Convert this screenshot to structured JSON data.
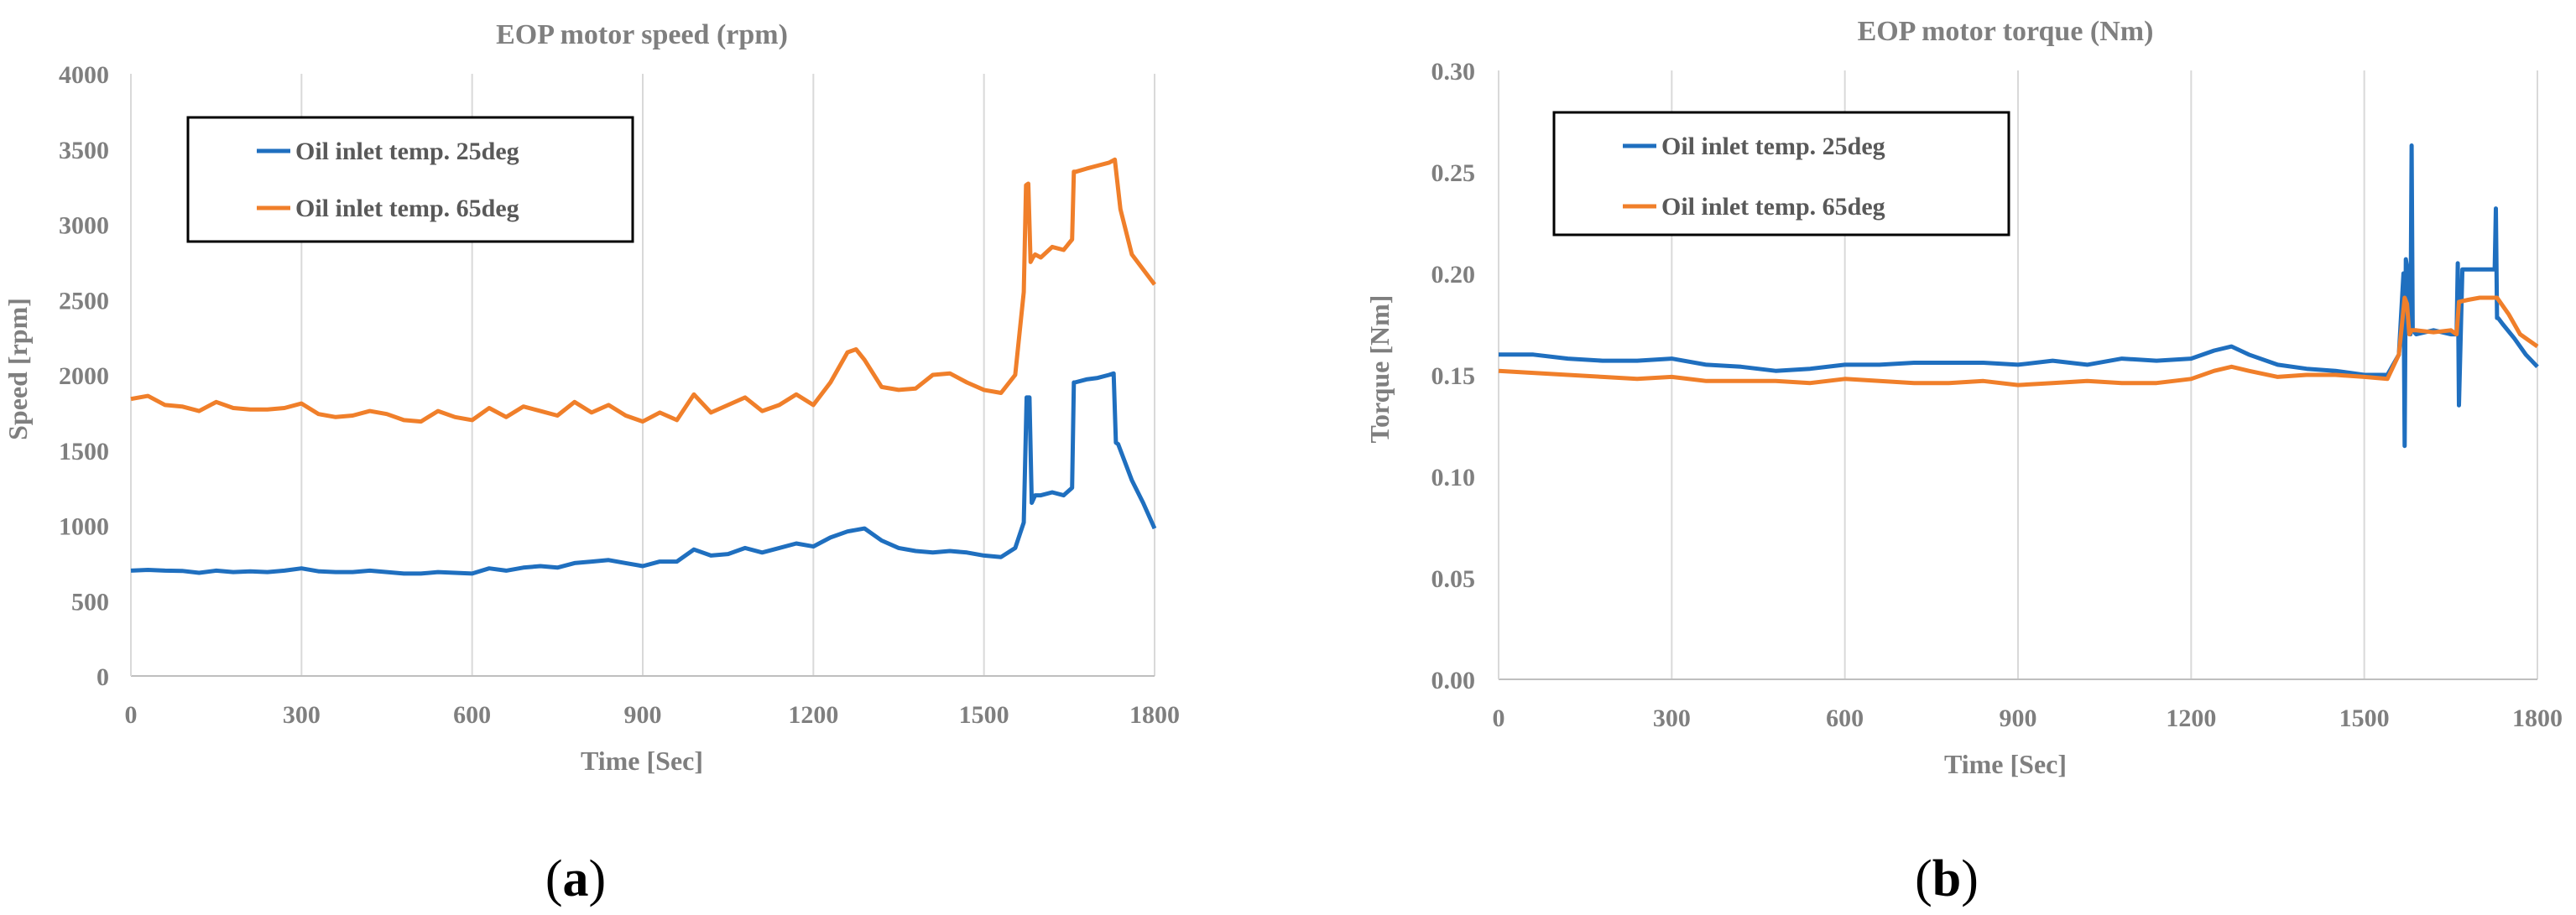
{
  "chart_data": [
    {
      "type": "line",
      "title": "EOP motor speed (rpm)",
      "xlabel": "Time [Sec]",
      "ylabel": "Speed [rpm]",
      "xlim": [
        0,
        1800
      ],
      "ylim": [
        0,
        4000
      ],
      "xticks": [
        0,
        300,
        600,
        900,
        1200,
        1500,
        1800
      ],
      "yticks": [
        0,
        500,
        1000,
        1500,
        2000,
        2500,
        3000,
        3500,
        4000
      ],
      "grid": "vertical",
      "legend": "top-left",
      "sublabel_paren_open": "(",
      "sublabel_letter": "a",
      "sublabel_paren_close": ")",
      "series": [
        {
          "name": "Oil inlet temp. 25deg",
          "color": "#1f6fbf",
          "x": [
            0,
            30,
            60,
            90,
            120,
            150,
            180,
            210,
            240,
            270,
            300,
            330,
            360,
            390,
            420,
            450,
            480,
            510,
            540,
            570,
            600,
            630,
            660,
            690,
            720,
            750,
            780,
            810,
            840,
            870,
            900,
            930,
            960,
            990,
            1020,
            1050,
            1080,
            1110,
            1140,
            1170,
            1200,
            1230,
            1260,
            1290,
            1320,
            1350,
            1380,
            1410,
            1440,
            1470,
            1500,
            1530,
            1555,
            1570,
            1575,
            1578,
            1580,
            1584,
            1590,
            1600,
            1620,
            1640,
            1655,
            1658,
            1660,
            1680,
            1700,
            1720,
            1728,
            1732,
            1736,
            1760,
            1780,
            1800
          ],
          "values": [
            700,
            705,
            700,
            698,
            685,
            700,
            690,
            695,
            690,
            700,
            715,
            695,
            690,
            690,
            700,
            690,
            680,
            680,
            690,
            685,
            680,
            715,
            700,
            720,
            730,
            720,
            750,
            760,
            770,
            750,
            730,
            760,
            760,
            840,
            800,
            810,
            850,
            820,
            850,
            880,
            860,
            920,
            960,
            980,
            900,
            850,
            830,
            820,
            830,
            820,
            800,
            790,
            850,
            1020,
            1850,
            1850,
            1850,
            1150,
            1200,
            1200,
            1220,
            1200,
            1250,
            1950,
            1950,
            1970,
            1980,
            2000,
            2010,
            1550,
            1540,
            1300,
            1150,
            980
          ]
        },
        {
          "name": "Oil inlet temp. 65deg",
          "color": "#f07f2a",
          "x": [
            0,
            30,
            60,
            90,
            120,
            150,
            180,
            210,
            240,
            270,
            300,
            330,
            360,
            390,
            420,
            450,
            480,
            510,
            540,
            570,
            600,
            630,
            660,
            690,
            720,
            750,
            780,
            810,
            840,
            870,
            900,
            930,
            960,
            990,
            1020,
            1050,
            1080,
            1110,
            1140,
            1170,
            1200,
            1230,
            1260,
            1275,
            1290,
            1320,
            1350,
            1380,
            1410,
            1440,
            1470,
            1500,
            1530,
            1555,
            1570,
            1574,
            1578,
            1582,
            1586,
            1590,
            1600,
            1620,
            1640,
            1655,
            1658,
            1662,
            1680,
            1700,
            1720,
            1730,
            1740,
            1760,
            1780,
            1800
          ],
          "values": [
            1840,
            1860,
            1800,
            1790,
            1760,
            1820,
            1780,
            1770,
            1770,
            1780,
            1810,
            1740,
            1720,
            1730,
            1760,
            1740,
            1700,
            1690,
            1760,
            1720,
            1700,
            1780,
            1720,
            1790,
            1760,
            1730,
            1820,
            1750,
            1800,
            1730,
            1690,
            1750,
            1700,
            1870,
            1750,
            1800,
            1850,
            1760,
            1800,
            1870,
            1800,
            1950,
            2150,
            2170,
            2100,
            1920,
            1900,
            1910,
            2000,
            2010,
            1950,
            1900,
            1880,
            2000,
            2550,
            3260,
            3270,
            2750,
            2780,
            2800,
            2780,
            2850,
            2830,
            2900,
            3350,
            3350,
            3370,
            3390,
            3410,
            3430,
            3100,
            2800,
            2700,
            2600
          ]
        }
      ]
    },
    {
      "type": "line",
      "title": "EOP motor torque (Nm)",
      "xlabel": "Time [Sec]",
      "ylabel": "Torque [Nm]",
      "xlim": [
        0,
        1800
      ],
      "ylim": [
        0,
        0.3
      ],
      "xticks": [
        0,
        300,
        600,
        900,
        1200,
        1500,
        1800
      ],
      "yticks": [
        0.0,
        0.05,
        0.1,
        0.15,
        0.2,
        0.25,
        0.3
      ],
      "ytick_labels": [
        "0.00",
        "0.05",
        "0.10",
        "0.15",
        "0.20",
        "0.25",
        "0.30"
      ],
      "grid": "vertical",
      "legend": "top-left",
      "sublabel_paren_open": "(",
      "sublabel_letter": "b",
      "sublabel_paren_close": ")",
      "series": [
        {
          "name": "Oil inlet temp. 25deg",
          "color": "#1f6fbf",
          "x": [
            0,
            60,
            120,
            180,
            240,
            300,
            360,
            420,
            480,
            540,
            600,
            660,
            720,
            780,
            840,
            900,
            960,
            1020,
            1080,
            1140,
            1200,
            1240,
            1270,
            1300,
            1350,
            1400,
            1450,
            1500,
            1540,
            1560,
            1568,
            1570,
            1572,
            1576,
            1580,
            1582,
            1584,
            1590,
            1620,
            1650,
            1660,
            1662,
            1664,
            1670,
            1700,
            1726,
            1728,
            1730,
            1732,
            1740,
            1760,
            1780,
            1800
          ],
          "values": [
            0.16,
            0.16,
            0.158,
            0.157,
            0.157,
            0.158,
            0.155,
            0.154,
            0.152,
            0.153,
            0.155,
            0.155,
            0.156,
            0.156,
            0.156,
            0.155,
            0.157,
            0.155,
            0.158,
            0.157,
            0.158,
            0.162,
            0.164,
            0.16,
            0.155,
            0.153,
            0.152,
            0.15,
            0.15,
            0.16,
            0.2,
            0.115,
            0.207,
            0.2,
            0.17,
            0.263,
            0.172,
            0.17,
            0.172,
            0.17,
            0.17,
            0.205,
            0.135,
            0.202,
            0.202,
            0.202,
            0.232,
            0.178,
            0.178,
            0.175,
            0.168,
            0.16,
            0.154
          ]
        },
        {
          "name": "Oil inlet temp. 65deg",
          "color": "#f07f2a",
          "x": [
            0,
            60,
            120,
            180,
            240,
            300,
            360,
            420,
            480,
            540,
            600,
            660,
            720,
            780,
            840,
            900,
            960,
            1020,
            1080,
            1140,
            1200,
            1240,
            1270,
            1300,
            1350,
            1400,
            1450,
            1500,
            1540,
            1560,
            1570,
            1574,
            1578,
            1582,
            1590,
            1620,
            1650,
            1660,
            1664,
            1680,
            1700,
            1730,
            1750,
            1770,
            1800
          ],
          "values": [
            0.152,
            0.151,
            0.15,
            0.149,
            0.148,
            0.149,
            0.147,
            0.147,
            0.147,
            0.146,
            0.148,
            0.147,
            0.146,
            0.146,
            0.147,
            0.145,
            0.146,
            0.147,
            0.146,
            0.146,
            0.148,
            0.152,
            0.154,
            0.152,
            0.149,
            0.15,
            0.15,
            0.149,
            0.148,
            0.16,
            0.188,
            0.185,
            0.17,
            0.172,
            0.172,
            0.171,
            0.172,
            0.17,
            0.186,
            0.187,
            0.188,
            0.188,
            0.18,
            0.17,
            0.164
          ]
        }
      ]
    }
  ]
}
